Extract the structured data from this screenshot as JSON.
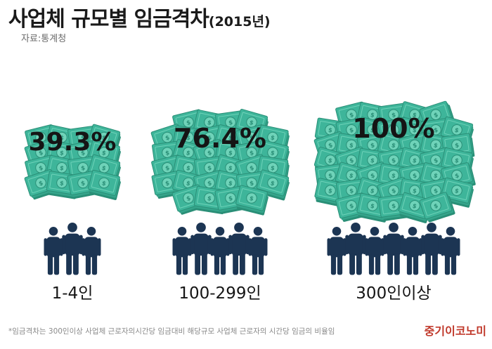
{
  "header": {
    "title": "사업체 규모별 임금격차",
    "title_year": "(2015년)",
    "source": "자료:통계청"
  },
  "footer": {
    "note": "*임금격차는 300인이상 사업체 근로자의시간당 임금대비 해당규모 사업체 근로자의 시간당 임금의 비율임",
    "brand": "중기이코노미"
  },
  "chart_data": {
    "type": "bar",
    "categories": [
      "1-4인",
      "100-299인",
      "300인이상"
    ],
    "values": [
      39.3,
      76.4,
      100
    ],
    "value_labels": [
      "39.3%",
      "76.4%",
      "100%"
    ],
    "unit": "%",
    "people_icons": [
      3,
      5,
      7
    ],
    "colors": {
      "money": "#3eb59a",
      "money_dark": "#2a8f77",
      "money_light": "#6fd3b9",
      "people": "#1c3553",
      "text": "#151515",
      "brand": "#c0392b"
    }
  }
}
